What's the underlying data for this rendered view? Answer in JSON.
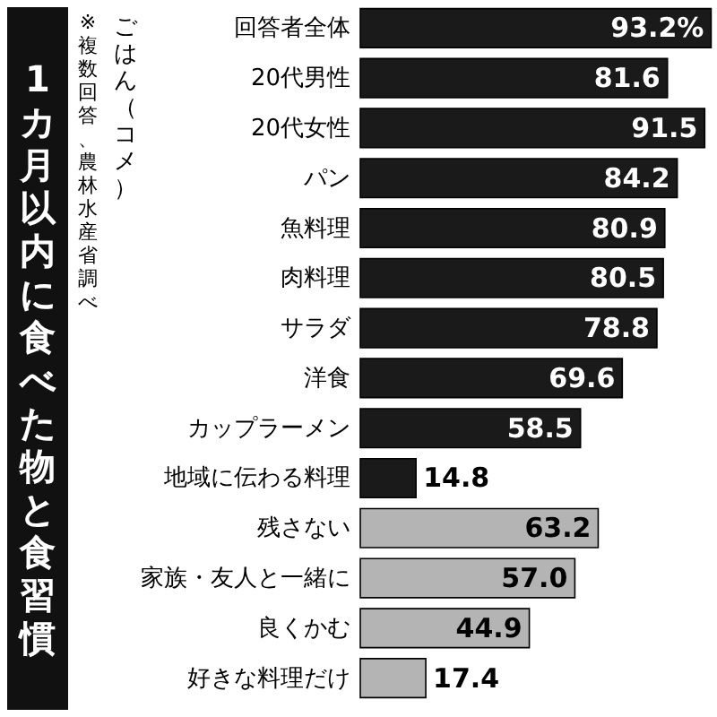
{
  "chart_data": {
    "type": "bar",
    "orientation": "horizontal",
    "title": "1カ月以内に食べた物と食習慣",
    "annotations": [
      "※複数回答、農林水産省調べ",
      "ごはん（コメ）"
    ],
    "categories": [
      "回答者全体",
      "20代男性",
      "20代女性",
      "パン",
      "魚料理",
      "肉料理",
      "サラダ",
      "洋食",
      "カップラーメン",
      "地域に伝わる料理",
      "残さない",
      "家族・友人と一緒に",
      "良くかむ",
      "好きな料理だけ"
    ],
    "values": [
      93.2,
      81.6,
      91.5,
      84.2,
      80.9,
      80.5,
      78.8,
      69.6,
      58.5,
      14.8,
      63.2,
      57.0,
      44.9,
      17.4
    ],
    "value_labels": [
      "93.2%",
      "81.6",
      "91.5",
      "84.2",
      "80.9",
      "80.5",
      "78.8",
      "69.6",
      "58.5",
      "14.8",
      "63.2",
      "57.0",
      "44.9",
      "17.4"
    ],
    "colors": [
      "#1a1a1a",
      "#1a1a1a",
      "#1a1a1a",
      "#1a1a1a",
      "#1a1a1a",
      "#1a1a1a",
      "#1a1a1a",
      "#1a1a1a",
      "#1a1a1a",
      "#1a1a1a",
      "#b4b4b4",
      "#b4b4b4",
      "#b4b4b4",
      "#b4b4b4"
    ]
  }
}
